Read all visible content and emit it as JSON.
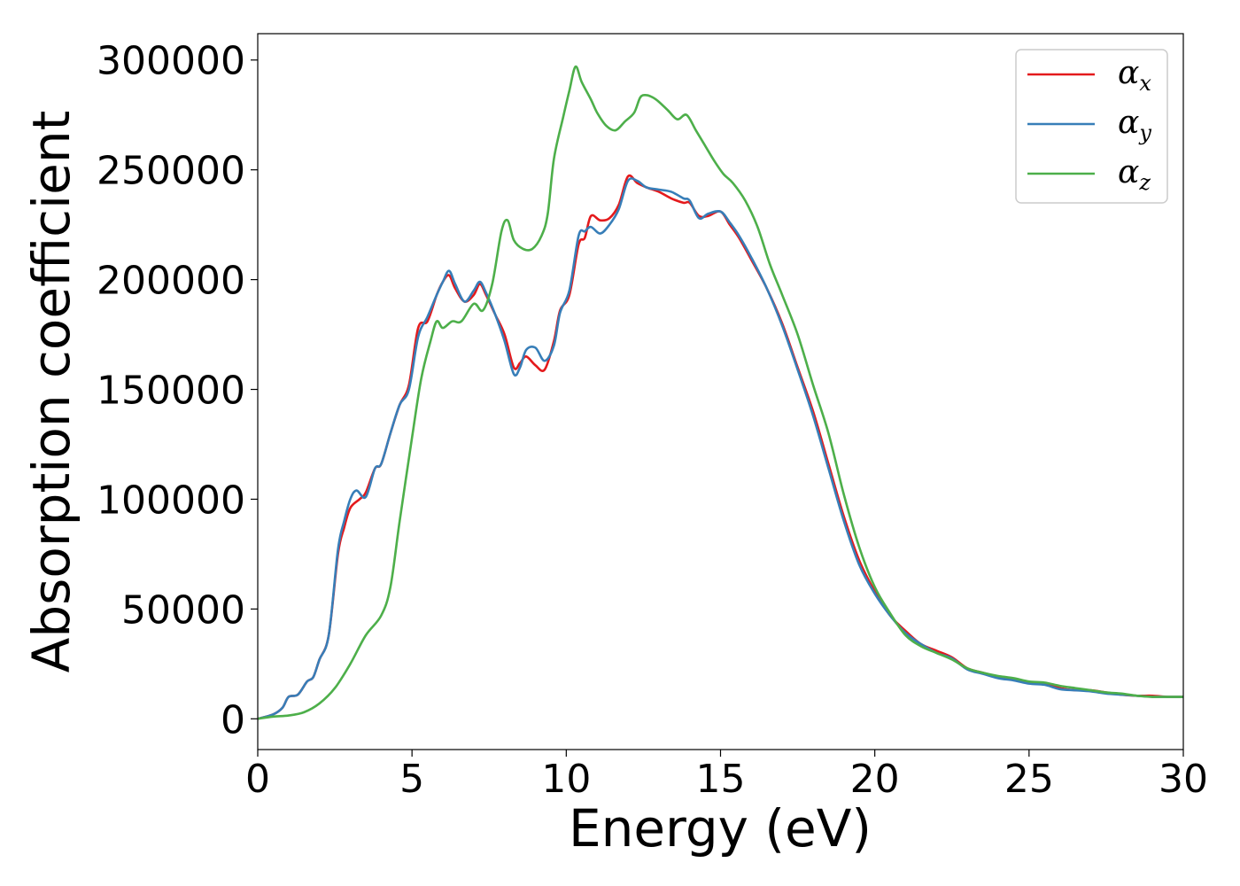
{
  "chart_data": {
    "type": "line",
    "title": "",
    "xlabel": "Energy (eV)",
    "ylabel": "Absorption coefficient",
    "xlim": [
      0,
      30
    ],
    "ylim": [
      -14000,
      312000
    ],
    "xticks": [
      "0",
      "5",
      "10",
      "15",
      "20",
      "25",
      "30"
    ],
    "xtick_values": [
      0,
      5,
      10,
      15,
      20,
      25,
      30
    ],
    "yticks": [
      "0",
      "50000",
      "100000",
      "150000",
      "200000",
      "250000",
      "300000"
    ],
    "ytick_values": [
      0,
      50000,
      100000,
      150000,
      200000,
      250000,
      300000
    ],
    "grid": false,
    "legend_position": "top-right",
    "series": [
      {
        "name": "αx",
        "symbol": "α",
        "subscript": "x",
        "color": "#e41a1c",
        "points": [
          [
            0,
            0
          ],
          [
            0.5,
            2000
          ],
          [
            0.8,
            5000
          ],
          [
            1.0,
            10000
          ],
          [
            1.3,
            11000
          ],
          [
            1.6,
            17000
          ],
          [
            1.8,
            19000
          ],
          [
            2.0,
            27000
          ],
          [
            2.3,
            38000
          ],
          [
            2.6,
            75000
          ],
          [
            2.8,
            87000
          ],
          [
            3.0,
            96000
          ],
          [
            3.3,
            100000
          ],
          [
            3.5,
            103000
          ],
          [
            3.8,
            114000
          ],
          [
            4.0,
            116000
          ],
          [
            4.3,
            130000
          ],
          [
            4.6,
            143000
          ],
          [
            4.9,
            152000
          ],
          [
            5.2,
            178000
          ],
          [
            5.5,
            181000
          ],
          [
            5.8,
            193000
          ],
          [
            6.0,
            199000
          ],
          [
            6.2,
            202000
          ],
          [
            6.4,
            196000
          ],
          [
            6.7,
            190000
          ],
          [
            7.0,
            193000
          ],
          [
            7.2,
            198000
          ],
          [
            7.4,
            193000
          ],
          [
            7.7,
            184000
          ],
          [
            8.0,
            175000
          ],
          [
            8.3,
            160000
          ],
          [
            8.5,
            162000
          ],
          [
            8.7,
            165000
          ],
          [
            9.0,
            161000
          ],
          [
            9.3,
            159000
          ],
          [
            9.6,
            172000
          ],
          [
            9.8,
            186000
          ],
          [
            10.1,
            193000
          ],
          [
            10.4,
            216000
          ],
          [
            10.6,
            219000
          ],
          [
            10.8,
            229000
          ],
          [
            11.1,
            227000
          ],
          [
            11.4,
            228000
          ],
          [
            11.7,
            234000
          ],
          [
            12.0,
            247000
          ],
          [
            12.3,
            244000
          ],
          [
            12.6,
            242000
          ],
          [
            13.0,
            240000
          ],
          [
            13.4,
            237000
          ],
          [
            13.8,
            235000
          ],
          [
            14.0,
            235000
          ],
          [
            14.3,
            229000
          ],
          [
            14.6,
            229000
          ],
          [
            15.0,
            231000
          ],
          [
            15.3,
            225000
          ],
          [
            15.6,
            219000
          ],
          [
            16.0,
            209000
          ],
          [
            16.5,
            196000
          ],
          [
            17.0,
            180000
          ],
          [
            17.5,
            160000
          ],
          [
            18.0,
            140000
          ],
          [
            18.5,
            116000
          ],
          [
            19.0,
            92000
          ],
          [
            19.5,
            72000
          ],
          [
            20.0,
            58000
          ],
          [
            20.5,
            47000
          ],
          [
            21.0,
            40000
          ],
          [
            21.5,
            34000
          ],
          [
            22.0,
            31000
          ],
          [
            22.5,
            28000
          ],
          [
            23.0,
            23000
          ],
          [
            23.5,
            21000
          ],
          [
            24.0,
            19000
          ],
          [
            24.5,
            18000
          ],
          [
            25.0,
            16500
          ],
          [
            25.5,
            16000
          ],
          [
            26.0,
            14000
          ],
          [
            26.5,
            13000
          ],
          [
            27.0,
            13000
          ],
          [
            27.5,
            12000
          ],
          [
            28.0,
            11000
          ],
          [
            28.5,
            10500
          ],
          [
            29.0,
            10500
          ],
          [
            29.5,
            10000
          ],
          [
            30.0,
            10000
          ]
        ]
      },
      {
        "name": "αy",
        "symbol": "α",
        "subscript": "y",
        "color": "#377eb8",
        "points": [
          [
            0,
            0
          ],
          [
            0.5,
            2000
          ],
          [
            0.8,
            5000
          ],
          [
            1.0,
            10000
          ],
          [
            1.3,
            11000
          ],
          [
            1.6,
            17000
          ],
          [
            1.8,
            19000
          ],
          [
            2.0,
            27000
          ],
          [
            2.3,
            38000
          ],
          [
            2.6,
            77000
          ],
          [
            2.8,
            90000
          ],
          [
            3.0,
            100000
          ],
          [
            3.2,
            104000
          ],
          [
            3.5,
            101000
          ],
          [
            3.8,
            114000
          ],
          [
            4.0,
            116000
          ],
          [
            4.3,
            130000
          ],
          [
            4.6,
            143000
          ],
          [
            4.9,
            150000
          ],
          [
            5.2,
            174000
          ],
          [
            5.5,
            183000
          ],
          [
            5.8,
            193000
          ],
          [
            6.0,
            199000
          ],
          [
            6.2,
            204000
          ],
          [
            6.4,
            198000
          ],
          [
            6.7,
            190000
          ],
          [
            7.0,
            195000
          ],
          [
            7.2,
            199000
          ],
          [
            7.4,
            194000
          ],
          [
            7.7,
            184000
          ],
          [
            8.0,
            172000
          ],
          [
            8.3,
            157000
          ],
          [
            8.5,
            160000
          ],
          [
            8.7,
            168000
          ],
          [
            9.0,
            169000
          ],
          [
            9.3,
            163000
          ],
          [
            9.6,
            170000
          ],
          [
            9.8,
            185000
          ],
          [
            10.1,
            195000
          ],
          [
            10.4,
            220000
          ],
          [
            10.6,
            222000
          ],
          [
            10.8,
            224000
          ],
          [
            11.1,
            221000
          ],
          [
            11.4,
            225000
          ],
          [
            11.7,
            232000
          ],
          [
            12.0,
            245000
          ],
          [
            12.3,
            245000
          ],
          [
            12.6,
            242000
          ],
          [
            13.0,
            241000
          ],
          [
            13.4,
            240000
          ],
          [
            13.8,
            237000
          ],
          [
            14.0,
            236000
          ],
          [
            14.3,
            228000
          ],
          [
            14.6,
            230000
          ],
          [
            15.0,
            231000
          ],
          [
            15.3,
            226000
          ],
          [
            15.6,
            220000
          ],
          [
            16.0,
            210000
          ],
          [
            16.5,
            196000
          ],
          [
            17.0,
            179000
          ],
          [
            17.5,
            159000
          ],
          [
            18.0,
            138000
          ],
          [
            18.5,
            114000
          ],
          [
            19.0,
            90000
          ],
          [
            19.5,
            70000
          ],
          [
            20.0,
            57000
          ],
          [
            20.5,
            47000
          ],
          [
            21.0,
            39000
          ],
          [
            21.5,
            34000
          ],
          [
            22.0,
            30000
          ],
          [
            22.5,
            27500
          ],
          [
            23.0,
            22500
          ],
          [
            23.5,
            20500
          ],
          [
            24.0,
            18500
          ],
          [
            24.5,
            17500
          ],
          [
            25.0,
            16000
          ],
          [
            25.5,
            15500
          ],
          [
            26.0,
            13500
          ],
          [
            26.5,
            13000
          ],
          [
            27.0,
            12500
          ],
          [
            27.5,
            11500
          ],
          [
            28.0,
            11000
          ],
          [
            28.5,
            10500
          ],
          [
            29.0,
            10000
          ],
          [
            29.5,
            10000
          ],
          [
            30.0,
            10000
          ]
        ]
      },
      {
        "name": "αz",
        "symbol": "α",
        "subscript": "z",
        "color": "#4daf4a",
        "points": [
          [
            0,
            0
          ],
          [
            0.5,
            1000
          ],
          [
            1.0,
            1500
          ],
          [
            1.5,
            3000
          ],
          [
            2.0,
            7000
          ],
          [
            2.5,
            14000
          ],
          [
            3.0,
            25000
          ],
          [
            3.5,
            38000
          ],
          [
            4.0,
            47000
          ],
          [
            4.3,
            60000
          ],
          [
            4.6,
            90000
          ],
          [
            5.0,
            128000
          ],
          [
            5.3,
            155000
          ],
          [
            5.6,
            172000
          ],
          [
            5.8,
            181000
          ],
          [
            6.0,
            178000
          ],
          [
            6.3,
            181000
          ],
          [
            6.6,
            181000
          ],
          [
            7.0,
            189000
          ],
          [
            7.3,
            186000
          ],
          [
            7.6,
            198000
          ],
          [
            7.9,
            222000
          ],
          [
            8.1,
            227000
          ],
          [
            8.3,
            218000
          ],
          [
            8.6,
            214000
          ],
          [
            8.9,
            214000
          ],
          [
            9.2,
            220000
          ],
          [
            9.4,
            230000
          ],
          [
            9.6,
            255000
          ],
          [
            9.9,
            274000
          ],
          [
            10.1,
            286000
          ],
          [
            10.3,
            297000
          ],
          [
            10.5,
            290000
          ],
          [
            10.8,
            282000
          ],
          [
            11.0,
            276000
          ],
          [
            11.3,
            270000
          ],
          [
            11.6,
            268000
          ],
          [
            11.9,
            272000
          ],
          [
            12.2,
            276000
          ],
          [
            12.4,
            283000
          ],
          [
            12.6,
            284000
          ],
          [
            12.8,
            283000
          ],
          [
            13.0,
            281000
          ],
          [
            13.3,
            277000
          ],
          [
            13.6,
            273000
          ],
          [
            13.9,
            275000
          ],
          [
            14.2,
            268000
          ],
          [
            14.5,
            261000
          ],
          [
            14.8,
            254000
          ],
          [
            15.1,
            248000
          ],
          [
            15.4,
            244000
          ],
          [
            15.8,
            236000
          ],
          [
            16.2,
            224000
          ],
          [
            16.6,
            207000
          ],
          [
            17.0,
            193000
          ],
          [
            17.5,
            175000
          ],
          [
            18.0,
            152000
          ],
          [
            18.5,
            130000
          ],
          [
            19.0,
            102000
          ],
          [
            19.5,
            78000
          ],
          [
            20.0,
            60000
          ],
          [
            20.5,
            48000
          ],
          [
            21.0,
            38000
          ],
          [
            21.5,
            33000
          ],
          [
            22.0,
            30000
          ],
          [
            22.5,
            27000
          ],
          [
            23.0,
            23000
          ],
          [
            23.5,
            21000
          ],
          [
            24.0,
            19500
          ],
          [
            24.5,
            18500
          ],
          [
            25.0,
            17000
          ],
          [
            25.5,
            16500
          ],
          [
            26.0,
            15000
          ],
          [
            26.5,
            14000
          ],
          [
            27.0,
            13000
          ],
          [
            27.5,
            12000
          ],
          [
            28.0,
            11500
          ],
          [
            28.5,
            10500
          ],
          [
            29.0,
            10000
          ],
          [
            29.5,
            10000
          ],
          [
            30.0,
            10000
          ]
        ]
      }
    ]
  }
}
